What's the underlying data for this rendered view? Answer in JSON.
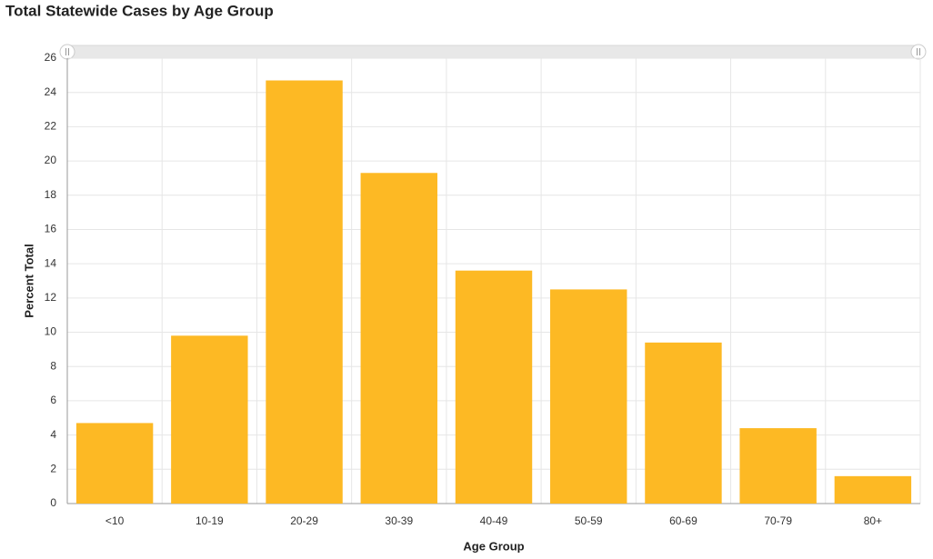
{
  "chart_data": {
    "type": "bar",
    "title": "Total Statewide Cases by Age Group",
    "x_label": "Age Group",
    "y_label": "Percent Total",
    "categories": [
      "<10",
      "10-19",
      "20-29",
      "30-39",
      "40-49",
      "50-59",
      "60-69",
      "70-79",
      "80+"
    ],
    "values": [
      4.7,
      9.8,
      24.7,
      19.3,
      13.6,
      12.5,
      9.4,
      4.4,
      1.6
    ],
    "color": "#fdb924",
    "ylim": [
      0,
      26
    ],
    "yticks": [
      0,
      2,
      4,
      6,
      8,
      10,
      12,
      14,
      16,
      18,
      20,
      22,
      24,
      26
    ],
    "grid": true
  }
}
